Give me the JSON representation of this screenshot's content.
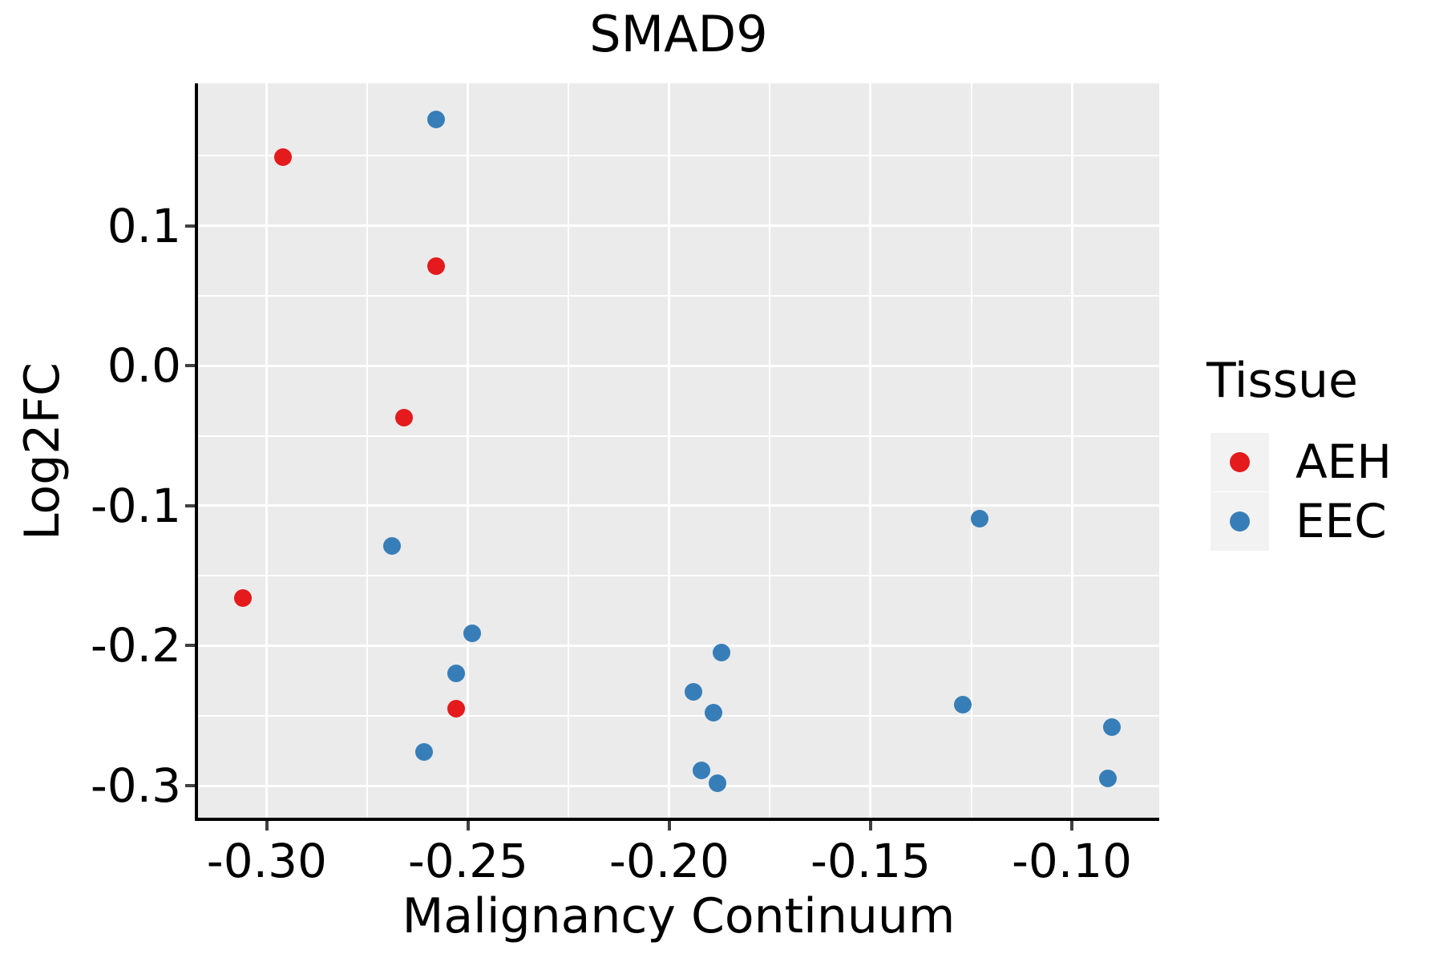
{
  "chart_data": {
    "type": "scatter",
    "title": "SMAD9",
    "xlabel": "Malignancy Continuum",
    "ylabel": "Log2FC",
    "legend_title": "Tissue",
    "legend_position": "right",
    "grid": true,
    "xlim": [
      -0.3171,
      -0.0783
    ],
    "ylim": [
      -0.3229,
      0.2018
    ],
    "x_ticks": [
      -0.3,
      -0.25,
      -0.2,
      -0.15,
      -0.1
    ],
    "x_tick_labels": [
      "-0.30",
      "-0.25",
      "-0.20",
      "-0.15",
      "-0.10"
    ],
    "x_minor_ticks": [
      -0.275,
      -0.225,
      -0.175,
      -0.125
    ],
    "y_ticks": [
      0.1,
      0.0,
      -0.1,
      -0.2,
      -0.3
    ],
    "y_tick_labels": [
      "0.1",
      "0.0",
      "-0.1",
      "-0.2",
      "-0.3"
    ],
    "y_minor_ticks": [
      0.15,
      0.05,
      -0.05,
      -0.15,
      -0.25
    ],
    "series": [
      {
        "name": "AEH",
        "color": "#E41A1C",
        "points": [
          [
            -0.296,
            0.149
          ],
          [
            -0.258,
            0.071
          ],
          [
            -0.266,
            -0.037
          ],
          [
            -0.306,
            -0.166
          ],
          [
            -0.253,
            -0.245
          ]
        ]
      },
      {
        "name": "EEC",
        "color": "#377EB8",
        "points": [
          [
            -0.258,
            0.176
          ],
          [
            -0.269,
            -0.129
          ],
          [
            -0.249,
            -0.191
          ],
          [
            -0.253,
            -0.22
          ],
          [
            -0.261,
            -0.276
          ],
          [
            -0.187,
            -0.205
          ],
          [
            -0.194,
            -0.233
          ],
          [
            -0.189,
            -0.248
          ],
          [
            -0.192,
            -0.289
          ],
          [
            -0.188,
            -0.298
          ],
          [
            -0.123,
            -0.109
          ],
          [
            -0.127,
            -0.242
          ],
          [
            -0.09,
            -0.258
          ],
          [
            -0.091,
            -0.295
          ]
        ]
      }
    ]
  },
  "legend": {
    "title": "Tissue",
    "entries": [
      {
        "label": "AEH",
        "color": "#E41A1C"
      },
      {
        "label": "EEC",
        "color": "#377EB8"
      }
    ]
  },
  "colors": {
    "background": "#FFFFFF",
    "panel": "#EBEBEB",
    "gridline": "#FFFFFF",
    "spine": "#000000",
    "tick": "#404040",
    "legend_key": "#F2F2F2",
    "aeh": "#E41A1C",
    "eec": "#377EB8"
  }
}
